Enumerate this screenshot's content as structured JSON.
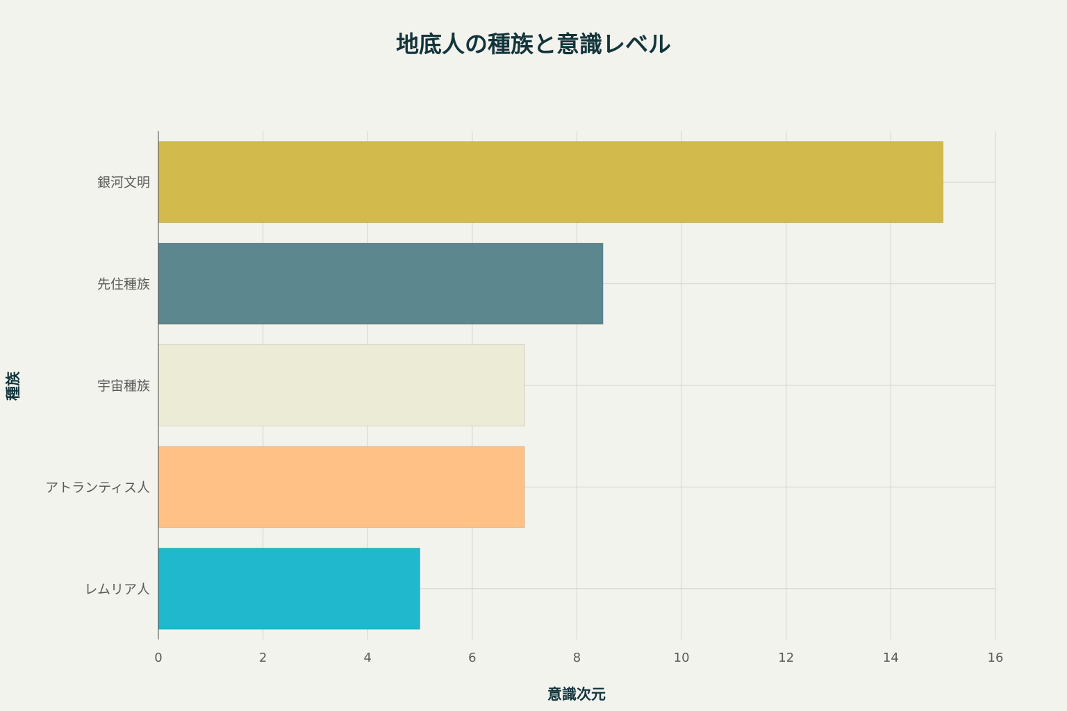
{
  "chart_data": {
    "type": "bar",
    "orientation": "horizontal",
    "title": "地底人の種族と意識レベル",
    "xlabel": "意識次元",
    "ylabel": "種族",
    "xlim": [
      0,
      16
    ],
    "x_ticks": [
      0,
      2,
      4,
      6,
      8,
      10,
      12,
      14,
      16
    ],
    "grid": true,
    "categories": [
      "銀河文明",
      "先住種族",
      "宇宙種族",
      "アトランティス人",
      "レムリア人"
    ],
    "values": [
      15,
      8.5,
      7,
      7,
      5
    ],
    "colors": [
      "#d2ba4c",
      "#5d878f",
      "#ecebd5",
      "#ffc185",
      "#1fb8cd"
    ]
  }
}
